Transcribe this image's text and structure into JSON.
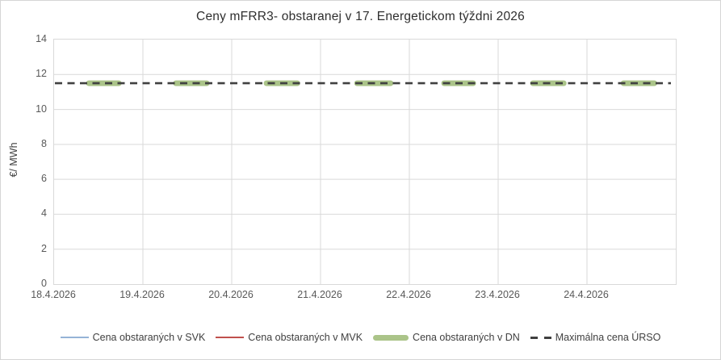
{
  "title": "Ceny mFRR3- obstaranej v 17. Energetickom týždni 2026",
  "y_axis": {
    "label": "€/ MWh",
    "ticks": [
      "0",
      "2",
      "4",
      "6",
      "8",
      "10",
      "12",
      "14"
    ]
  },
  "x_axis": {
    "labels": [
      "18.4.2026",
      "19.4.2026",
      "20.4.2026",
      "21.4.2026",
      "22.4.2026",
      "23.4.2026",
      "24.4.2026"
    ]
  },
  "legend": {
    "items": [
      {
        "label": "Cena obstaraných v SVK",
        "swatch": "thin",
        "color": "#95b3d7"
      },
      {
        "label": "Cena obstaraných v MVK",
        "swatch": "thin",
        "color": "#c0504d"
      },
      {
        "label": "Cena obstaraných v DN",
        "swatch": "thick",
        "color": "#abc489"
      },
      {
        "label": "Maximálna cena ÚRSO",
        "swatch": "dashed",
        "color": "#404040"
      }
    ]
  },
  "colors": {
    "gridline": "#d9d9d9",
    "plot_border": "#d9d9d9",
    "tick_text": "#595959",
    "title_text": "#2f2f2f",
    "svk_blue": "#95b3d7",
    "mvk_red": "#c0504d",
    "dn_green": "#abc489",
    "urso_dash": "#404040"
  },
  "chart_data": {
    "type": "line",
    "title": "Ceny mFRR3- obstaranej v 17. Energetickom týždni 2026",
    "xlabel": "",
    "ylabel": "€/ MWh",
    "ylim": [
      0,
      14
    ],
    "yticks": [
      0,
      2,
      4,
      6,
      8,
      10,
      12,
      14
    ],
    "grid": true,
    "legend_position": "bottom",
    "x_categories_days": [
      "18.4.2026",
      "19.4.2026",
      "20.4.2026",
      "21.4.2026",
      "22.4.2026",
      "23.4.2026",
      "24.4.2026"
    ],
    "series": [
      {
        "name": "Cena obstaraných v SVK",
        "color": "#95b3d7",
        "style": "thin",
        "visible_in_plot": false,
        "values": []
      },
      {
        "name": "Cena obstaraných v MVK",
        "color": "#c0504d",
        "style": "thin",
        "visible_in_plot": false,
        "values": []
      },
      {
        "name": "Cena obstaraných v DN",
        "color": "#abc489",
        "style": "thick",
        "visible_in_plot": true,
        "value": 11.5,
        "daily_segments": [
          {
            "date": "18.4.2026",
            "start_frac": 0.36,
            "end_frac": 0.76,
            "value": 11.5
          },
          {
            "date": "19.4.2026",
            "start_frac": 0.34,
            "end_frac": 0.75,
            "value": 11.5
          },
          {
            "date": "20.4.2026",
            "start_frac": 0.36,
            "end_frac": 0.77,
            "value": 11.5
          },
          {
            "date": "21.4.2026",
            "start_frac": 0.38,
            "end_frac": 0.82,
            "value": 11.5
          },
          {
            "date": "22.4.2026",
            "start_frac": 0.36,
            "end_frac": 0.75,
            "value": 11.5
          },
          {
            "date": "23.4.2026",
            "start_frac": 0.36,
            "end_frac": 0.77,
            "value": 11.5
          },
          {
            "date": "24.4.2026",
            "start_frac": 0.38,
            "end_frac": 0.79,
            "value": 11.5
          }
        ]
      },
      {
        "name": "Maximálna cena ÚRSO",
        "color": "#404040",
        "style": "dashed",
        "visible_in_plot": true,
        "value": 11.5,
        "span": "full-week"
      }
    ]
  }
}
